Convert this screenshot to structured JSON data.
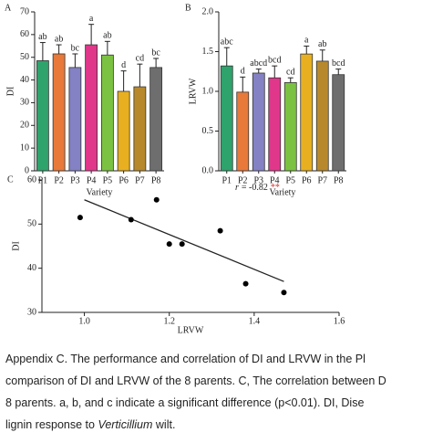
{
  "chart_data": [
    {
      "type": "bar",
      "panel_label": "A",
      "x_label": "Variety",
      "y_label": "DI",
      "categories": [
        "P1",
        "P2",
        "P3",
        "P4",
        "P5",
        "P6",
        "P7",
        "P8"
      ],
      "values": [
        48.5,
        51.5,
        45.5,
        55.5,
        51,
        35,
        37,
        45.5
      ],
      "errors": [
        8,
        4,
        6,
        9,
        6,
        9,
        10,
        4
      ],
      "letters": [
        "ab",
        "ab",
        "bc",
        "a",
        "ab",
        "d",
        "cd",
        "bc"
      ],
      "colors": [
        "#2ea36c",
        "#e8793a",
        "#8482c4",
        "#e0378b",
        "#7cc242",
        "#e8b020",
        "#b8892c",
        "#6e6e6e"
      ],
      "ylim": [
        0,
        70
      ],
      "yticks": [
        0,
        10,
        20,
        30,
        40,
        50,
        60,
        70
      ]
    },
    {
      "type": "bar",
      "panel_label": "B",
      "x_label": "Variety",
      "y_label": "LRVW",
      "categories": [
        "P1",
        "P2",
        "P3",
        "P4",
        "P5",
        "P6",
        "P7",
        "P8"
      ],
      "values": [
        1.32,
        0.99,
        1.23,
        1.17,
        1.11,
        1.47,
        1.38,
        1.21
      ],
      "errors": [
        0.23,
        0.19,
        0.05,
        0.15,
        0.06,
        0.1,
        0.14,
        0.07
      ],
      "letters": [
        "abc",
        "d",
        "abcd",
        "bcd",
        "cd",
        "a",
        "ab",
        "bcd"
      ],
      "colors": [
        "#2ea36c",
        "#e8793a",
        "#8482c4",
        "#e0378b",
        "#7cc242",
        "#e8b020",
        "#b8892c",
        "#6e6e6e"
      ],
      "ylim": [
        0,
        2
      ],
      "yticks": [
        {
          "value": 0,
          "label": "0.0"
        },
        0.5,
        {
          "value": 1,
          "label": "1.0"
        },
        1.5,
        {
          "value": 2,
          "label": "2.0"
        }
      ]
    },
    {
      "type": "scatter",
      "panel_label": "C",
      "x_label": "LRVW",
      "y_label": "DI",
      "x": [
        0.99,
        1.11,
        1.17,
        1.2,
        1.23,
        1.32,
        1.38,
        1.47
      ],
      "y": [
        51.5,
        51,
        55.5,
        45.5,
        45.5,
        48.5,
        36.5,
        34.5
      ],
      "fit_line": {
        "x": [
          1.0,
          1.47
        ],
        "y": [
          55.5,
          37
        ]
      },
      "annotation": {
        "symbol": "r",
        "text": "= -0.82",
        "significance": "**"
      },
      "xlim": [
        0.9,
        1.6
      ],
      "xticks": [
        {
          "value": 1,
          "label": "1.0"
        },
        1.2,
        1.4,
        1.6
      ],
      "ylim": [
        30,
        60
      ],
      "yticks": [
        30,
        40,
        50,
        60
      ]
    }
  ],
  "caption": {
    "lines": [
      "Appendix C. The performance and correlation of DI and LRVW in the Pl",
      "comparison of DI and LRVW of the 8 parents. C, The correlation between D",
      "8 parents. a, b, and c indicate a significant difference (p<0.01). DI, Dise"
    ],
    "last_line": {
      "before": "lignin response to ",
      "italic": "Verticillium",
      "after": " wilt."
    }
  }
}
